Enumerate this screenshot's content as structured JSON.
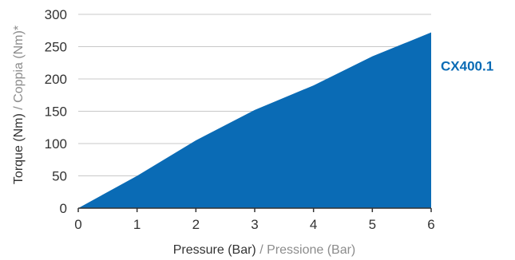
{
  "chart_data": {
    "type": "area",
    "x": [
      0,
      1,
      2,
      3,
      4,
      5,
      6
    ],
    "series": [
      {
        "name": "CX400.1",
        "values": [
          0,
          50,
          105,
          152,
          190,
          235,
          272
        ]
      }
    ],
    "xlim": [
      0,
      6
    ],
    "ylim": [
      0,
      300
    ],
    "xticks": [
      "0",
      "1",
      "2",
      "3",
      "4",
      "5",
      "6"
    ],
    "yticks": [
      "0",
      "50",
      "100",
      "150",
      "200",
      "250",
      "300"
    ],
    "xlabel": {
      "main": "Pressure (Bar)",
      "separator": " / ",
      "alt": "Pressione (Bar)"
    },
    "ylabel": {
      "main": "Torque (Nm)",
      "separator": " / ",
      "alt": "Coppia (Nm)*"
    },
    "grid": true,
    "legend": "right",
    "colors": {
      "fill": "#0a6bb5",
      "label": "#0a6bb5",
      "grid": "#c8c8c8",
      "axis": "#333333"
    }
  }
}
